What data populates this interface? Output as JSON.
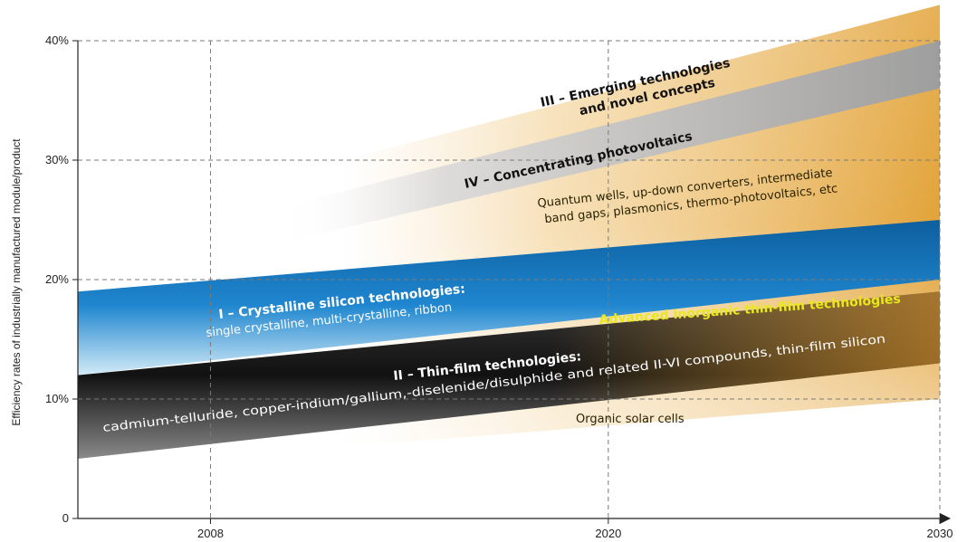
{
  "chart_data": {
    "type": "area",
    "title": "",
    "xlabel": "",
    "ylabel": "Efficiency rates of industrially manufactured module/product",
    "x_ticks": [
      "2008",
      "2020",
      "2030"
    ],
    "y_ticks": [
      "0",
      "10%",
      "20%",
      "30%",
      "40%"
    ],
    "xlim": [
      2004,
      2030
    ],
    "ylim": [
      0,
      40
    ],
    "grid": true,
    "series": [
      {
        "id": "crystalline",
        "name": "I – Crystalline silicon technologies:",
        "subtitle": "single crystalline, multi-crystalline, ribbon",
        "color": "#1a7fc8",
        "x": [
          2004,
          2030
        ],
        "lower": [
          12,
          20
        ],
        "upper": [
          19,
          25
        ]
      },
      {
        "id": "thinfilm",
        "name": "II – Thin-film technologies:",
        "subtitle": "cadmium-telluride, copper-indium/gallium,-diselenide/disulphide and related II-VI compounds, thin-film silicon",
        "color": "#1c1c1c",
        "x": [
          2004,
          2030
        ],
        "lower": [
          5,
          13
        ],
        "upper": [
          12,
          19
        ]
      },
      {
        "id": "emerging",
        "name": "III – Emerging technologies and novel concepts",
        "subtitle": "Quantum wells, up-down converters, intermediate band gaps, plasmonics, thermo-photovoltaics, etc",
        "color": "#e6a73d",
        "x": [
          2012,
          2030
        ],
        "lower": [
          6,
          10
        ],
        "upper": [
          30,
          43
        ]
      },
      {
        "id": "concentrating",
        "name": "IV – Concentrating photovoltaics",
        "subtitle": "",
        "color": "#a9a9a9",
        "x": [
          2010,
          2030
        ],
        "lower": [
          23,
          36
        ],
        "upper": [
          26,
          40
        ]
      }
    ],
    "annotations": [
      "Advanced inorganic thin-film technologies",
      "Organic solar cells"
    ]
  }
}
